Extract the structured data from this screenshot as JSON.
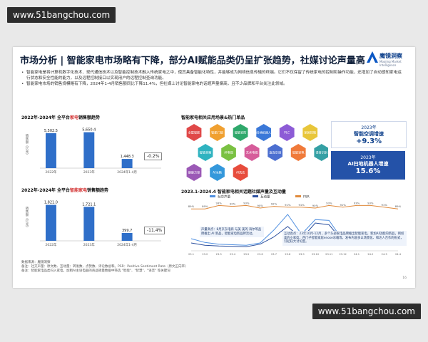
{
  "watermark": "www.51bangchou.com",
  "slide": {
    "title": "市场分析 | 智能家电市场略有下降，部分AI赋能品类仍呈扩张趋势，社媒讨论声量高",
    "logo_name": "魔镜洞察",
    "logo_sub": "Moojing Market Intelligence",
    "bullets": [
      "智能家电是将计算机数字化技术、现代通信技术以及智能控制技术融入传统家电之中，使其具备智能化特性，并能够成为网络信息传输的终端。它们不仅保留了传统家电的控制和操作功能，还增加了自动感知家电运行状态和安全性能的能力，以及远程控制接口以实现用户的远程控制查询功能。",
      "智能家电市场的销售规模略有下降，2024年1-4月销售额同比下降11.4%，但社媒上讨论智能家电的话题声量偏高，且不少品牌和平台关注此领域。"
    ],
    "footnotes": [
      "数据来源：魔镜洞察",
      "备注：社交声量：原文数、互动量：转发数、点赞数、评论数总和。PSR：Positive Sentiment Rate（原文正向率）",
      "备注：智能家电品类归入家电，加粗AI主语电器的商品销量数据中筛选 \"智能\"、\"智慧\"、\"语音\" 等关键词"
    ],
    "page_number": "16"
  },
  "chart1": {
    "title_pre": "2022年-2024年 全平台",
    "title_hl": "家电",
    "title_post": "销售额趋势",
    "ylabel": "销售额（亿元）",
    "badge": "-0.2%",
    "color": "#2f6fc9"
  },
  "chart2": {
    "title_pre": "2022年-2024年 全平台",
    "title_hl": "智能家电",
    "title_post": "销售额趋势",
    "ylabel": "销售额（亿元）",
    "badge": "-11.4%",
    "color": "#2f6fc9"
  },
  "hex": {
    "title": "智能家电相关应用场景&热门单品",
    "items": [
      "全屋智能",
      "智能门锁",
      "智能安防",
      "扫地机器人",
      "PLC",
      "家居控制",
      "智能音箱",
      "AI电视",
      "艺术电视",
      "直连空调",
      "智能家电",
      "语音识别",
      "健康方案",
      "AI冰箱",
      "AI洗衣"
    ]
  },
  "stats": [
    {
      "line1": "2023年",
      "line2": "智能空调增速",
      "value": "+9.3%"
    },
    {
      "line1": "2023年",
      "line2": "AI扫地机器人增速",
      "value": "15.6%"
    }
  ],
  "chart3": {
    "title": "2023.1-2024.4 智能家电相关话题社媒声量及互动量",
    "legend": [
      "社交声量",
      "互动量",
      "PSR"
    ],
    "psr_labels": [
      "89%",
      "89%",
      "93%",
      "92%",
      "93%",
      "90%",
      "92%",
      "91%",
      "91%",
      "90%",
      "93%",
      "91%",
      "93%",
      "93%",
      "91%",
      "89%"
    ],
    "note1": "声量高点：8月京东电商 与美 美的 海尔等品牌推出 AI 新品，智能家电新品牌活动。",
    "note2": "互动高点：23年10月-12月，多个头部家电品牌推出智能家电，新加AI功能的新品，例如美的小家电；西门子智能家居enose冰箱等，发布内容多以场景化、和达人合作的形式，引起较大讨论度。",
    "colors": {
      "volume": "#4f8fe0",
      "interaction": "#2b4f9e",
      "psr": "#e08a3c"
    }
  },
  "chart_data": [
    {
      "type": "bar",
      "title": "2022年-2024年 全平台家电销售额趋势",
      "categories": [
        "2022年",
        "2023年",
        "2024年1-4月"
      ],
      "values": [
        5502.5,
        5650.4,
        1448.3
      ],
      "ylabel": "销售额（亿元）"
    },
    {
      "type": "bar",
      "title": "2022年-2024年 全平台智能家电销售额趋势",
      "categories": [
        "2022年",
        "2023年",
        "2024年1-4月"
      ],
      "values": [
        1821.0,
        1721.1,
        399.7
      ],
      "ylabel": "销售额（亿元）"
    },
    {
      "type": "line",
      "title": "2023.1-2024.4 智能家电相关话题社媒声量及互动量",
      "x": [
        "23.1",
        "23.2",
        "23.3",
        "23.4",
        "23.5",
        "23.6",
        "23.7",
        "23.8",
        "23.9",
        "23.10",
        "23.11",
        "23.12",
        "24.1",
        "24.2",
        "24.3",
        "24.4"
      ],
      "series": [
        {
          "name": "社交声量",
          "values": [
            70,
            48,
            38,
            35,
            32,
            45,
            120,
            210,
            95,
            180,
            175,
            60,
            50,
            40,
            42,
            38
          ]
        },
        {
          "name": "互动量",
          "values": [
            45,
            32,
            28,
            26,
            24,
            38,
            80,
            140,
            70,
            160,
            150,
            55,
            44,
            36,
            38,
            35
          ]
        },
        {
          "name": "PSR",
          "values": [
            89,
            89,
            93,
            92,
            93,
            90,
            92,
            91,
            91,
            90,
            93,
            91,
            93,
            93,
            91,
            89
          ]
        }
      ]
    }
  ]
}
